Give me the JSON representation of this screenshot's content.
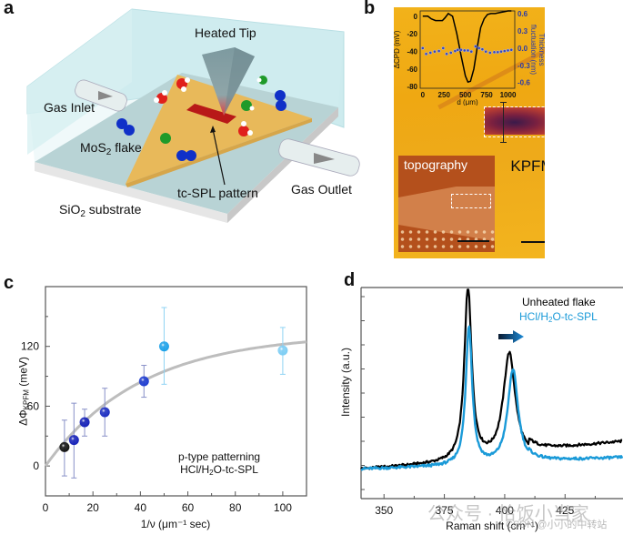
{
  "panels": {
    "a": {
      "letter": "a",
      "labels": {
        "heated_tip": "Heated Tip",
        "gas_inlet": "Gas Inlet",
        "mos2_flake_main": "MoS",
        "mos2_flake_sub": "2",
        "mos2_flake_tail": " flake",
        "tc_spl_pattern": "tc-SPL pattern",
        "gas_outlet": "Gas Outlet",
        "substrate_main": "SiO",
        "substrate_sub": "2",
        "substrate_tail": " substrate"
      },
      "colors": {
        "chamber": "#cdebee",
        "substrate_top": "#a9c5c6",
        "flake": "#e8b95a",
        "pattern": "#b81818",
        "tip": "#7d9aa0",
        "oxygen": "#e0201c",
        "chlorine": "#1f9a2a",
        "nitrogen": "#1030c8"
      }
    },
    "b": {
      "letter": "b",
      "kpfm_label": "KPFM",
      "topography_label": "topography",
      "inset_chart": {
        "type": "line",
        "xlabel": "d (μm)",
        "ylabel_left": "ΔCPD (mV)",
        "ylabel_right_line1": "Thickness",
        "ylabel_right_line2": "fluctuation (nm)",
        "x_ticks": [
          "0",
          "250",
          "500",
          "750",
          "1000"
        ],
        "y_left_ticks": [
          "0",
          "-20",
          "-40",
          "-60",
          "-80"
        ],
        "y_right_ticks": [
          "0.6",
          "0.3",
          "0.0",
          "-0.3",
          "-0.6"
        ],
        "xlim": [
          -30,
          1080
        ],
        "ylim_left": [
          -82,
          6
        ],
        "ylim_right": [
          -0.7,
          0.65
        ],
        "cpd_series": {
          "name": "ΔCPD",
          "x": [
            0,
            60,
            100,
            150,
            200,
            230,
            260,
            300,
            350,
            400,
            450,
            500,
            530,
            560,
            600,
            640,
            680,
            720,
            760,
            800,
            850,
            900,
            950,
            1000,
            1040
          ],
          "y": [
            0,
            0,
            -3,
            -5,
            -5,
            -5,
            -2,
            3,
            0,
            -20,
            -45,
            -68,
            -75,
            -74,
            -60,
            -35,
            -13,
            -3,
            2,
            3,
            3,
            4,
            5,
            6,
            6
          ]
        },
        "thickness_series": {
          "name": "Thickness fluctuation",
          "x": [
            0,
            40,
            90,
            140,
            190,
            240,
            280,
            330,
            380,
            410,
            450,
            490,
            530,
            570,
            620,
            660,
            700,
            740,
            790,
            840,
            880,
            920,
            960,
            1000,
            1040
          ],
          "y": [
            0.0,
            -0.1,
            -0.08,
            -0.06,
            -0.05,
            0.0,
            -0.1,
            -0.08,
            -0.05,
            -0.03,
            -0.03,
            -0.04,
            -0.04,
            -0.06,
            0.03,
            0.0,
            -0.02,
            -0.06,
            -0.08,
            -0.07,
            -0.07,
            -0.06,
            -0.05,
            -0.04,
            -0.03
          ]
        }
      }
    },
    "c": {
      "letter": "c",
      "chart_data": {
        "type": "scatter",
        "title": "",
        "xlabel": "1/ν (μm⁻¹ sec)",
        "ylabel": "ΔΦ_KPFM (meV)",
        "ylabel_main": "ΔΦ",
        "ylabel_sub": "KPFM",
        "ylabel_tail": " (meV)",
        "xlim": [
          0,
          110
        ],
        "ylim": [
          -30,
          180
        ],
        "x_ticks": [
          0,
          20,
          40,
          60,
          80,
          100
        ],
        "x_minor_ticks": [
          10,
          30,
          50,
          70,
          90
        ],
        "y_ticks": [
          0,
          60,
          120
        ],
        "y_minor_ticks": [
          30,
          90,
          150
        ],
        "grid": false,
        "annotation_line1": "p-type patterning",
        "annotation_line2_main": "HCl/H",
        "annotation_line2_sub": "2",
        "annotation_line2_tail": "O-tc-SPL",
        "points": [
          {
            "x": 8,
            "y": 19,
            "err_low": 29,
            "err_high": 27,
            "color": "#111111"
          },
          {
            "x": 12,
            "y": 26,
            "err_low": 38,
            "err_high": 37,
            "color": "#1420b8"
          },
          {
            "x": 16.5,
            "y": 44,
            "err_low": 14,
            "err_high": 13,
            "color": "#1420b8"
          },
          {
            "x": 25,
            "y": 54,
            "err_low": 24,
            "err_high": 24,
            "color": "#1a2cc0"
          },
          {
            "x": 41.5,
            "y": 85,
            "err_low": 16,
            "err_high": 16,
            "color": "#1c3ad0"
          },
          {
            "x": 50,
            "y": 120,
            "err_low": 38,
            "err_high": 39,
            "color": "#1aa0e8"
          },
          {
            "x": 100,
            "y": 116,
            "err_low": 24,
            "err_high": 23,
            "color": "#7ccdf4"
          }
        ],
        "fit_curve": {
          "model": "A*(1-exp(-x/t))",
          "A": 133,
          "t": 40,
          "color": "#bdbdbd"
        }
      }
    },
    "d": {
      "letter": "d",
      "chart_data": {
        "type": "line",
        "title": "",
        "xlabel": "Raman shift (cm⁻¹)",
        "ylabel": "Intensity (a.u.)",
        "xlim": [
          340.5,
          449
        ],
        "ylim": [
          0,
          1
        ],
        "x_ticks": [
          350,
          375,
          400,
          425
        ],
        "x_minor_ticks": [
          362.5,
          387.5,
          412.5,
          437.5
        ],
        "y_tick_count": 9,
        "grid": false,
        "legend": {
          "position": "top-right",
          "entries": [
            {
              "label": "Unheated flake",
              "color": "#000000"
            },
            {
              "label_main": "HCl/H",
              "label_sub": "2",
              "label_tail": "O-tc-SPL",
              "color": "#1a9ad8"
            }
          ]
        },
        "shift_arrow": {
          "direction": "right",
          "color": "#1a8ad8"
        },
        "series": [
          {
            "name": "Unheated flake",
            "color": "#000000",
            "baseline": 0.14,
            "baseline_slope": 0.0012,
            "peaks": [
              {
                "center": 384.8,
                "height": 0.83,
                "width": 1.8
              },
              {
                "center": 401.9,
                "height": 0.5,
                "width": 3.0
              }
            ]
          },
          {
            "name": "HCl/H2O-tc-SPL",
            "color": "#1a9ad8",
            "baseline": 0.14,
            "baseline_slope": 0.0005,
            "peaks": [
              {
                "center": 385.2,
                "height": 0.66,
                "width": 1.6
              },
              {
                "center": 403.4,
                "height": 0.45,
                "width": 2.6
              }
            ]
          }
        ]
      },
      "watermark_main": "公众号 · 恰饭小当家",
      "watermark_csdn": "CSDN @小小的中转站"
    }
  }
}
